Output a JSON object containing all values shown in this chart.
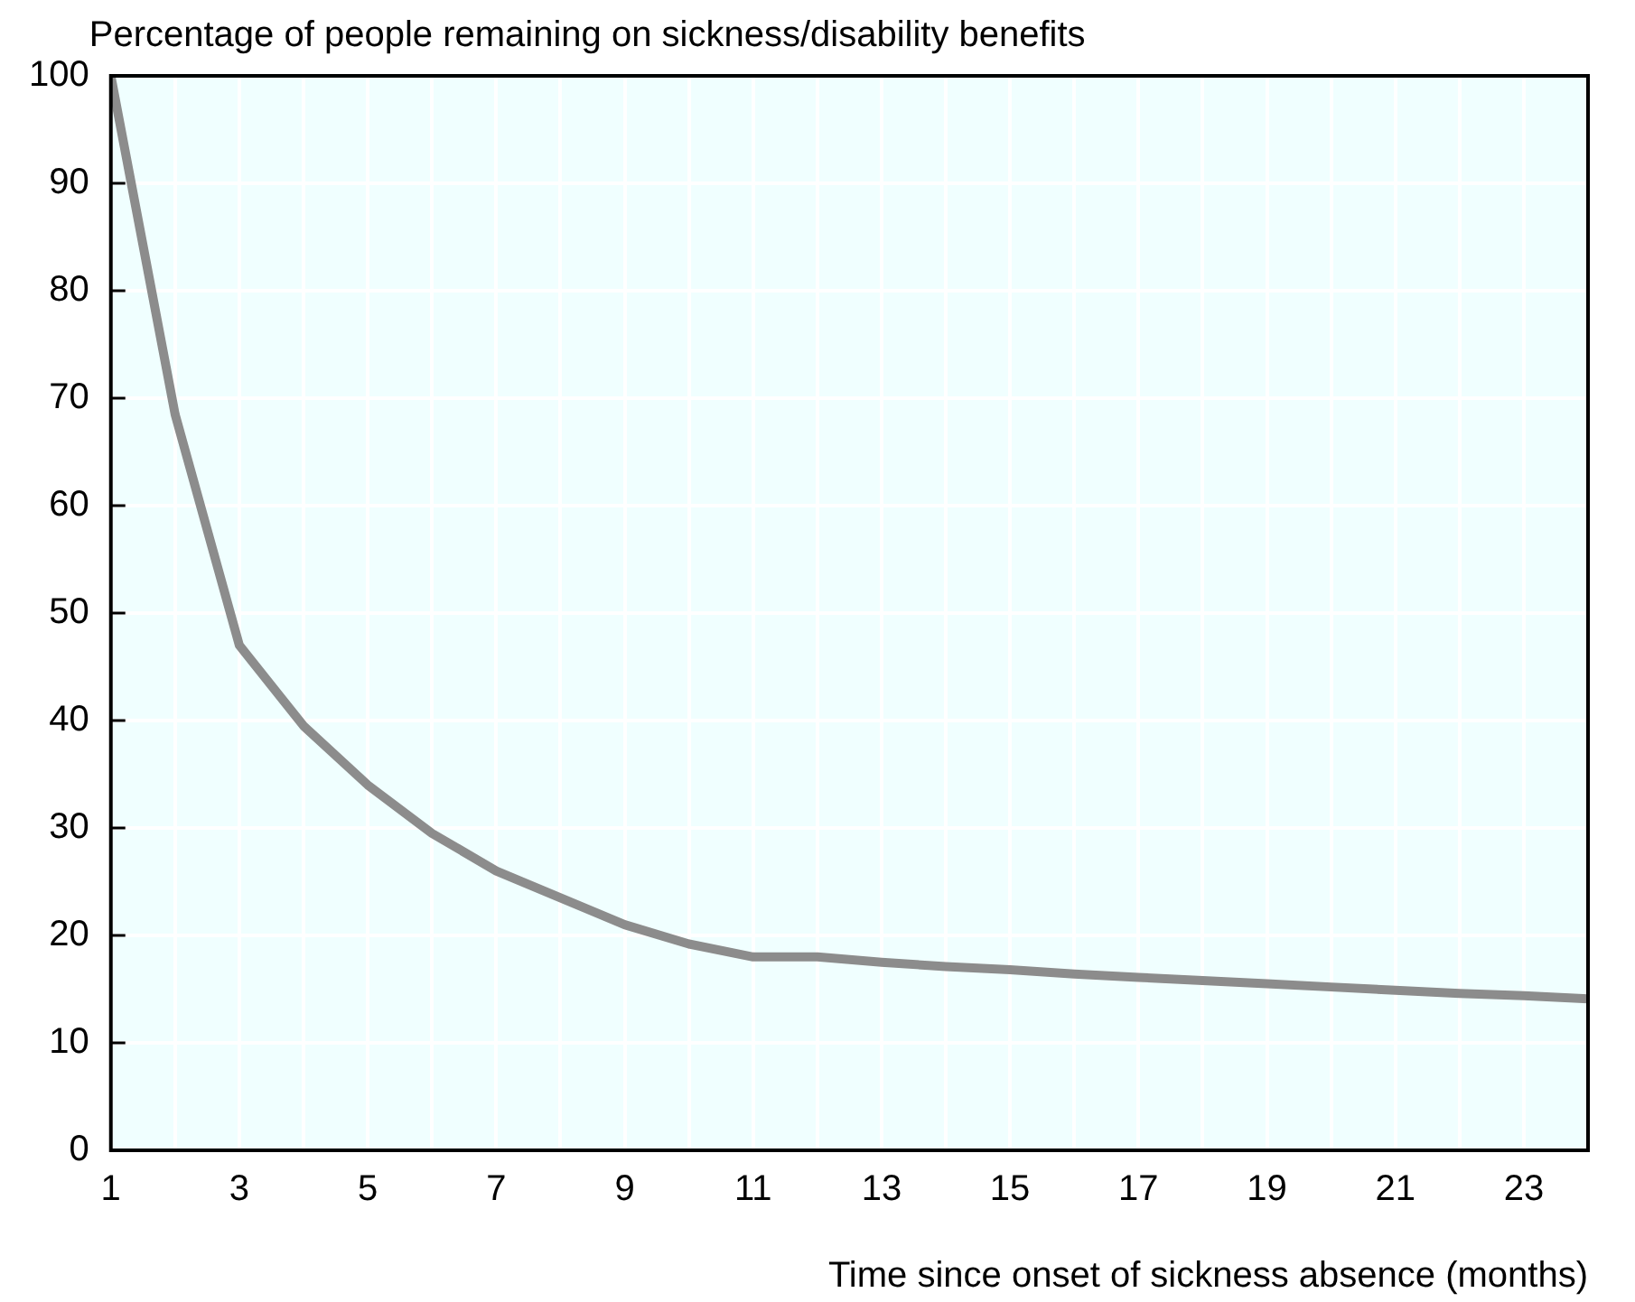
{
  "chart_data": {
    "type": "line",
    "ylabel": "Percentage of people remaining on sickness/disability benefits",
    "xlabel": "Time since onset of sickness absence (months)",
    "x": [
      1,
      2,
      3,
      4,
      5,
      6,
      7,
      8,
      9,
      10,
      11,
      12,
      13,
      14,
      15,
      16,
      17,
      18,
      19,
      20,
      21,
      22,
      23,
      24
    ],
    "series": [
      {
        "color": "#8c8c8c",
        "values": [
          100,
          68.5,
          47,
          39.5,
          34,
          29.5,
          26,
          23.5,
          21,
          19.2,
          18,
          18,
          17.5,
          17.1,
          16.8,
          16.4,
          16.1,
          15.8,
          15.5,
          15.2,
          14.9,
          14.6,
          14.4,
          14.1
        ]
      }
    ],
    "xlim": [
      1,
      24
    ],
    "xticks": [
      1,
      3,
      5,
      7,
      9,
      11,
      13,
      15,
      17,
      19,
      21,
      23
    ],
    "ylim": [
      0,
      100
    ],
    "yticks": [
      0,
      10,
      20,
      30,
      40,
      50,
      60,
      70,
      80,
      90,
      100
    ],
    "grid": true,
    "legend": false,
    "marker": "none",
    "line_style": "solid"
  }
}
